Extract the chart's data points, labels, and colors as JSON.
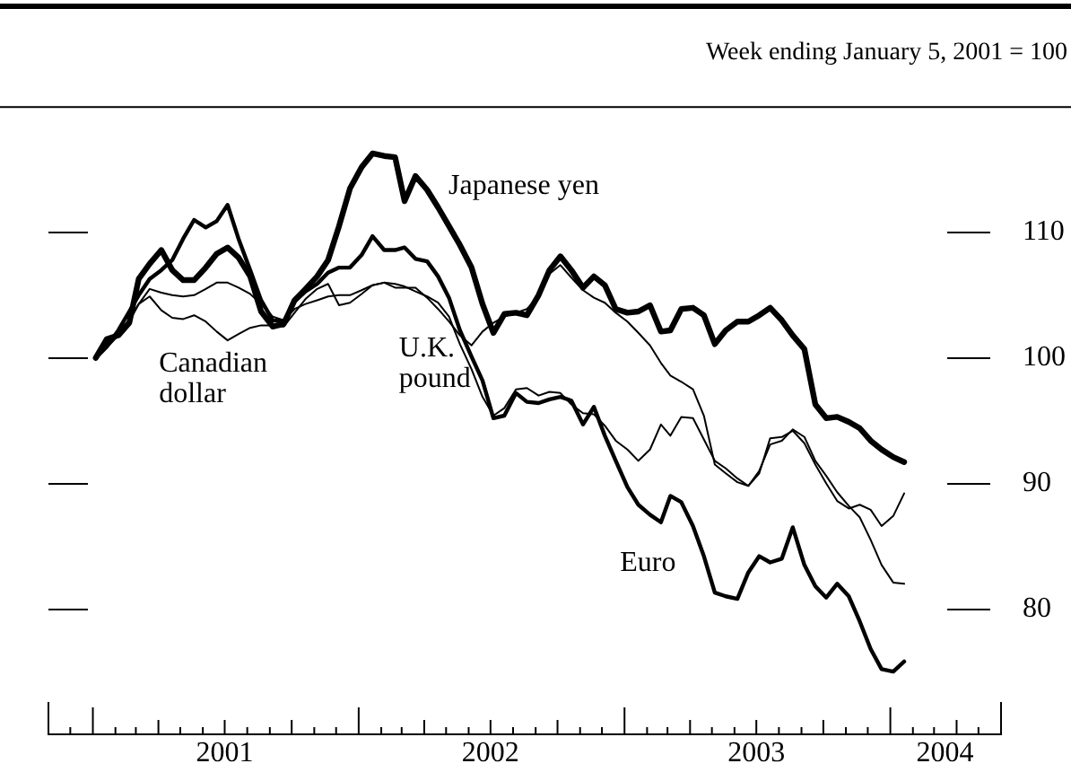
{
  "chart_data": {
    "type": "line",
    "subtitle": "Week ending January 5, 2001 = 100",
    "marker": "none",
    "x": [
      "2001-01-05",
      "2001-01-20",
      "2001-02-05",
      "2001-02-20",
      "2001-03-05",
      "2001-03-20",
      "2001-04-05",
      "2001-04-20",
      "2001-05-05",
      "2001-05-20",
      "2001-06-05",
      "2001-06-20",
      "2001-07-05",
      "2001-07-20",
      "2001-08-05",
      "2001-08-20",
      "2001-09-05",
      "2001-09-20",
      "2001-10-05",
      "2001-10-20",
      "2001-11-05",
      "2001-11-20",
      "2001-12-05",
      "2001-12-20",
      "2002-01-05",
      "2002-01-20",
      "2002-02-05",
      "2002-02-20",
      "2002-03-05",
      "2002-03-20",
      "2002-04-05",
      "2002-04-20",
      "2002-05-05",
      "2002-05-20",
      "2002-06-05",
      "2002-06-20",
      "2002-07-05",
      "2002-07-20",
      "2002-08-05",
      "2002-08-20",
      "2002-09-05",
      "2002-09-20",
      "2002-10-05",
      "2002-10-20",
      "2002-11-05",
      "2002-11-20",
      "2002-12-05",
      "2002-12-20",
      "2003-01-05",
      "2003-01-20",
      "2003-02-05",
      "2003-02-20",
      "2003-03-05",
      "2003-03-20",
      "2003-04-05",
      "2003-04-20",
      "2003-05-05",
      "2003-05-20",
      "2003-06-05",
      "2003-06-20",
      "2003-07-05",
      "2003-07-20",
      "2003-08-05",
      "2003-08-20",
      "2003-09-05",
      "2003-09-20",
      "2003-10-05",
      "2003-10-20",
      "2003-11-05",
      "2003-11-20",
      "2003-12-05",
      "2003-12-20",
      "2004-01-05",
      "2004-01-20"
    ],
    "xlim": [
      "2000-11-01",
      "2004-06-01"
    ],
    "xticks": [
      {
        "value": "2000-12-01",
        "label": null
      },
      {
        "value": "2001-01-01",
        "label": null
      },
      {
        "value": "2001-02-01",
        "label": null
      },
      {
        "value": "2001-03-01",
        "label": null
      },
      {
        "value": "2001-04-01",
        "label": null
      },
      {
        "value": "2001-05-01",
        "label": null
      },
      {
        "value": "2001-06-01",
        "label": null
      },
      {
        "value": "2001-07-01",
        "label": "2001"
      },
      {
        "value": "2001-08-01",
        "label": null
      },
      {
        "value": "2001-09-01",
        "label": null
      },
      {
        "value": "2001-10-01",
        "label": null
      },
      {
        "value": "2001-11-01",
        "label": null
      },
      {
        "value": "2001-12-01",
        "label": null
      },
      {
        "value": "2002-01-01",
        "label": null
      },
      {
        "value": "2002-02-01",
        "label": null
      },
      {
        "value": "2002-03-01",
        "label": null
      },
      {
        "value": "2002-04-01",
        "label": null
      },
      {
        "value": "2002-05-01",
        "label": null
      },
      {
        "value": "2002-06-01",
        "label": null
      },
      {
        "value": "2002-07-01",
        "label": "2002"
      },
      {
        "value": "2002-08-01",
        "label": null
      },
      {
        "value": "2002-09-01",
        "label": null
      },
      {
        "value": "2002-10-01",
        "label": null
      },
      {
        "value": "2002-11-01",
        "label": null
      },
      {
        "value": "2002-12-01",
        "label": null
      },
      {
        "value": "2003-01-01",
        "label": null
      },
      {
        "value": "2003-02-01",
        "label": null
      },
      {
        "value": "2003-03-01",
        "label": null
      },
      {
        "value": "2003-04-01",
        "label": null
      },
      {
        "value": "2003-05-01",
        "label": null
      },
      {
        "value": "2003-06-01",
        "label": null
      },
      {
        "value": "2003-07-01",
        "label": "2003"
      },
      {
        "value": "2003-08-01",
        "label": null
      },
      {
        "value": "2003-09-01",
        "label": null
      },
      {
        "value": "2003-10-01",
        "label": null
      },
      {
        "value": "2003-11-01",
        "label": null
      },
      {
        "value": "2003-12-01",
        "label": null
      },
      {
        "value": "2004-01-01",
        "label": null
      },
      {
        "value": "2004-02-01",
        "label": null
      },
      {
        "value": "2004-03-01",
        "label": null
      },
      {
        "value": "2004-03-16",
        "label": "2004"
      },
      {
        "value": "2004-04-01",
        "label": null
      },
      {
        "value": "2004-05-01",
        "label": null
      }
    ],
    "ylim": [
      70,
      120
    ],
    "yticks": [
      80,
      90,
      100,
      110
    ],
    "series": [
      {
        "name": "Japanese yen",
        "color": "#000000",
        "values": [
          100,
          101.5,
          101.8,
          102.8,
          106.3,
          107.5,
          108.6,
          107,
          106.2,
          106.2,
          107.2,
          108.3,
          108.8,
          108,
          106.5,
          103.7,
          102.5,
          102.7,
          104.6,
          105.5,
          106.5,
          107.8,
          110.5,
          113.5,
          115.2,
          116.3,
          116.1,
          116,
          112.5,
          114.5,
          113.4,
          112,
          110.5,
          109,
          107.2,
          104.3,
          102,
          103.5,
          103.6,
          103.4,
          105,
          107,
          108.1,
          107,
          105.6,
          106.5,
          105.8,
          103.9,
          103.6,
          103.7,
          104.2,
          102.1,
          102.2,
          103.9,
          104,
          103.4,
          101.1,
          102.2,
          102.9,
          102.9,
          103.4,
          104,
          103,
          101.8,
          100.7,
          96.3,
          95.2,
          95.3,
          94.9,
          94.4,
          93.4,
          92.7,
          92.1,
          91.7
        ]
      },
      {
        "name": "Euro",
        "color": "#000000",
        "values": [
          100,
          100.9,
          102.2,
          103.7,
          105,
          106.3,
          107,
          107.8,
          109.5,
          111,
          110.4,
          110.9,
          112.2,
          109.5,
          107,
          104.6,
          103,
          102.9,
          104.5,
          105.3,
          105.9,
          106.8,
          107.2,
          107.2,
          108.2,
          109.7,
          108.6,
          108.6,
          108.8,
          107.9,
          107.7,
          106.5,
          104.8,
          102.2,
          100.1,
          98.2,
          95.2,
          95.4,
          97.2,
          96.5,
          96.4,
          96.7,
          96.9,
          96.6,
          94.7,
          96.1,
          93.8,
          91.8,
          89.7,
          88.3,
          87.5,
          86.9,
          89,
          88.5,
          86.6,
          84.2,
          81.3,
          81,
          80.8,
          82.9,
          84.2,
          83.7,
          84,
          86.5,
          83.5,
          81.8,
          80.9,
          82,
          81,
          79,
          76.8,
          75.2,
          75,
          75.8
        ]
      },
      {
        "name": "U.K. pound",
        "color": "#000000",
        "values": [
          100,
          100.8,
          101.8,
          102.9,
          104.3,
          105.5,
          105.2,
          105,
          104.9,
          105,
          105.5,
          106,
          106,
          105.6,
          105.1,
          104.3,
          103.3,
          103,
          103.9,
          104.3,
          104.6,
          104.9,
          105,
          105,
          105.4,
          105.8,
          106,
          105.9,
          105.7,
          105.3,
          104.9,
          104.4,
          103.3,
          101.1,
          99.1,
          96.9,
          95.4,
          96,
          97.5,
          97.6,
          97,
          97.3,
          97.2,
          96.3,
          95.6,
          95.5,
          94.6,
          93.4,
          92.7,
          91.8,
          92.7,
          94.7,
          93.8,
          95.3,
          95.2,
          93.5,
          91.8,
          91.2,
          90.4,
          89.8,
          91,
          93.1,
          93.4,
          94.3,
          93.7,
          91.8,
          90.6,
          89.3,
          88.2,
          87.3,
          85.5,
          83.5,
          82.1,
          82
        ]
      },
      {
        "name": "Canadian dollar",
        "color": "#000000",
        "values": [
          100,
          101,
          102.2,
          103,
          104.3,
          104.9,
          103.8,
          103.2,
          103.1,
          103.4,
          102.9,
          102.1,
          101.4,
          101.9,
          102.4,
          102.6,
          102.6,
          102.5,
          103.6,
          104.7,
          105.5,
          105.9,
          104.2,
          104.4,
          105.1,
          105.8,
          106,
          105.6,
          105.6,
          105.6,
          104.8,
          103.9,
          102.9,
          101.8,
          101,
          102.1,
          102.8,
          103.3,
          103.6,
          103.9,
          104.9,
          106.7,
          107.4,
          106.4,
          105.4,
          104.8,
          104.4,
          103.6,
          102.9,
          102,
          101,
          99.6,
          98.6,
          98.1,
          97.5,
          95.4,
          91.5,
          90.8,
          90.1,
          89.8,
          90.8,
          93.6,
          93.7,
          94.2,
          93.2,
          91.5,
          90,
          88.6,
          88,
          88.3,
          87.9,
          86.6,
          87.4,
          89.2
        ]
      }
    ]
  }
}
